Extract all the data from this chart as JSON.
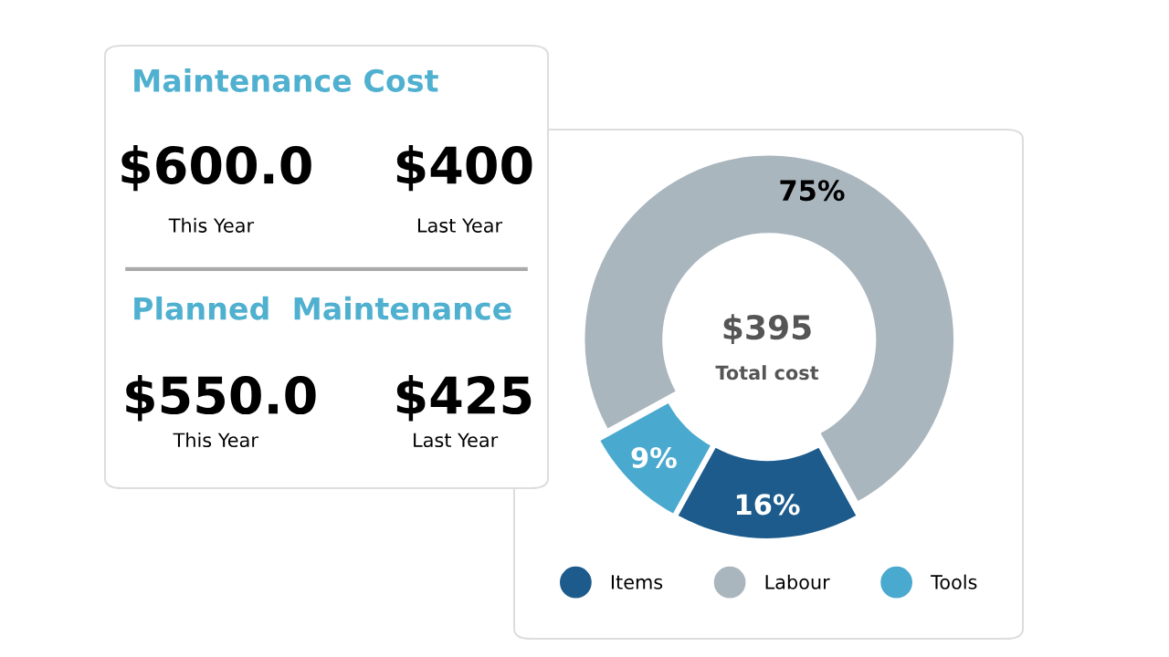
{
  "chart_data": [
    {
      "type": "other",
      "title": "Maintenance Cost",
      "annotations": [
        "$600.0",
        "This Year",
        "$400",
        "Last Year",
        "Planned  Maintenance",
        "$550.0",
        "This Year",
        "$425",
        "Last Year"
      ],
      "color": "#4fb0cf"
    },
    {
      "type": "donut",
      "categories": [
        "Items",
        "Labour",
        "Tools"
      ],
      "values": [
        16,
        75,
        9
      ],
      "value_labels": [
        "16%",
        "75%",
        "9%"
      ],
      "colors": [
        "#1c5b8c",
        "#aab6be",
        "#4aa9cf"
      ],
      "legend": "bottom",
      "annotations": [
        "$395",
        "Total cost"
      ]
    }
  ]
}
